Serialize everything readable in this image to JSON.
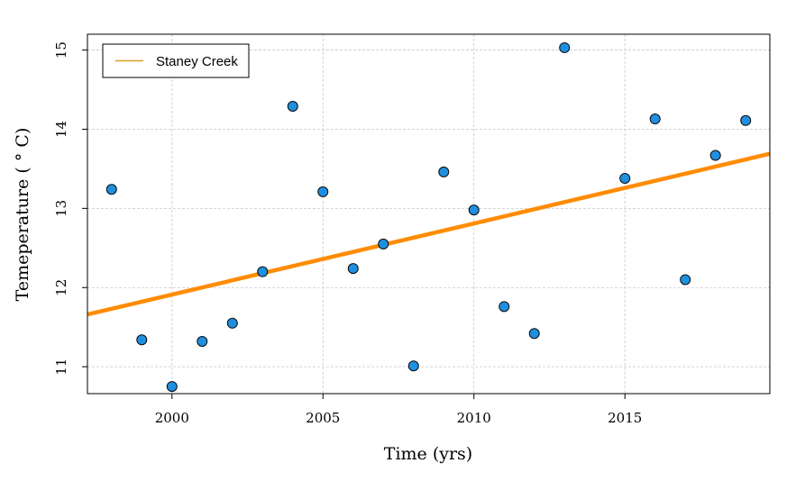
{
  "chart_data": {
    "type": "scatter",
    "title": "",
    "xlabel": "Time (yrs)",
    "ylabel": "Temeperature ( ° C)",
    "xlim": [
      1997.2,
      2019.8
    ],
    "ylim": [
      10.66,
      15.2
    ],
    "x_ticks": [
      2000,
      2005,
      2010,
      2015
    ],
    "y_ticks": [
      11,
      12,
      13,
      14,
      15
    ],
    "grid": true,
    "legend_position": "top-left",
    "legend_entries": [
      "Staney Creek"
    ],
    "points": {
      "x": [
        1998,
        1999,
        2000,
        2001,
        2002,
        2003,
        2004,
        2005,
        2006,
        2007,
        2008,
        2009,
        2010,
        2011,
        2012,
        2013,
        2015,
        2016,
        2017,
        2018,
        2019
      ],
      "y": [
        13.24,
        11.34,
        10.75,
        11.32,
        11.55,
        12.2,
        14.29,
        13.21,
        12.24,
        12.55,
        11.01,
        13.46,
        12.98,
        11.76,
        11.42,
        15.03,
        13.38,
        14.13,
        12.1,
        13.67,
        14.11
      ],
      "fill": "#1f8fe0",
      "stroke": "#0a0a0a"
    },
    "series": [
      {
        "name": "Staney Creek",
        "kind": "trend-line",
        "x": [
          1997.2,
          2019.8
        ],
        "y": [
          11.66,
          13.69
        ],
        "color": "#ff8c00"
      }
    ],
    "legend_line_color": "#d4a020",
    "grid_color": "#c8c8c8"
  }
}
